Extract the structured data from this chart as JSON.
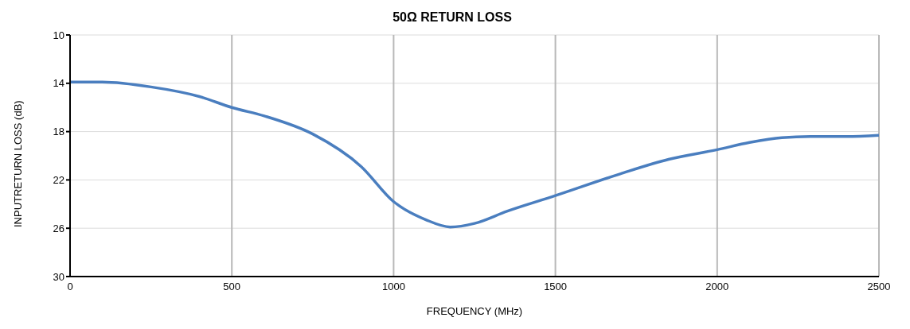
{
  "chart_data": {
    "type": "line",
    "title": "50Ω RETURN LOSS",
    "xlabel": "FREQUENCY (MHz)",
    "ylabel": "INPUTRETURN  LOSS (dB)",
    "x": [
      0,
      100,
      250,
      400,
      500,
      600,
      750,
      900,
      1000,
      1100,
      1175,
      1250,
      1350,
      1500,
      1700,
      1850,
      2000,
      2100,
      2200,
      2300,
      2400,
      2500
    ],
    "series": [
      {
        "color": "#4a7ebf",
        "values": [
          13.9,
          13.9,
          14.3,
          15.1,
          16.0,
          16.7,
          18.2,
          20.9,
          23.8,
          25.3,
          25.9,
          25.6,
          24.6,
          23.3,
          21.5,
          20.3,
          19.5,
          18.9,
          18.5,
          18.4,
          18.4,
          18.3
        ]
      }
    ],
    "xlim": [
      0,
      2500
    ],
    "xticks": [
      0,
      500,
      1000,
      1500,
      2000,
      2500
    ],
    "ylim": [
      30,
      10
    ],
    "yticks": [
      10,
      14,
      18,
      22,
      26,
      30
    ],
    "grid": true,
    "legend": false,
    "marker": "none",
    "line_style": "solid"
  }
}
